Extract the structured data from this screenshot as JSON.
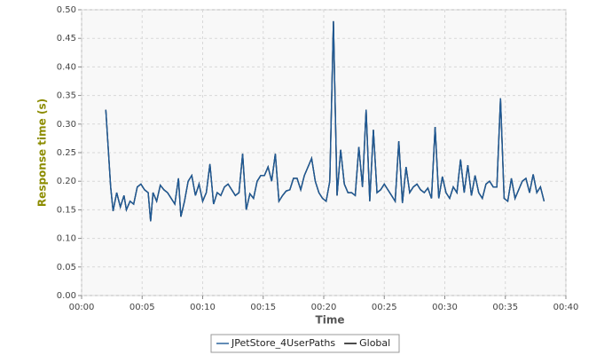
{
  "chart_data": {
    "type": "line",
    "xlabel": "Time",
    "ylabel": "Response time (s)",
    "x": [
      2.0,
      2.4,
      2.6,
      2.9,
      3.2,
      3.5,
      3.7,
      4.0,
      4.3,
      4.6,
      4.9,
      5.2,
      5.5,
      5.7,
      5.9,
      6.2,
      6.5,
      6.8,
      7.1,
      7.4,
      7.7,
      8.0,
      8.2,
      8.5,
      8.8,
      9.1,
      9.4,
      9.7,
      10.0,
      10.3,
      10.6,
      10.9,
      11.2,
      11.5,
      11.8,
      12.1,
      12.4,
      12.7,
      13.0,
      13.3,
      13.6,
      13.9,
      14.2,
      14.5,
      14.8,
      15.1,
      15.4,
      15.7,
      16.0,
      16.3,
      16.6,
      16.9,
      17.2,
      17.5,
      17.8,
      18.1,
      18.4,
      18.7,
      19.0,
      19.3,
      19.6,
      19.9,
      20.2,
      20.5,
      20.8,
      21.1,
      21.4,
      21.7,
      22.0,
      22.3,
      22.6,
      22.9,
      23.2,
      23.5,
      23.8,
      24.1,
      24.4,
      24.7,
      25.0,
      25.3,
      25.6,
      25.9,
      26.2,
      26.5,
      26.8,
      27.1,
      27.4,
      27.7,
      28.0,
      28.3,
      28.6,
      28.9,
      29.2,
      29.5,
      29.8,
      30.1,
      30.4,
      30.7,
      31.0,
      31.3,
      31.6,
      31.9,
      32.2,
      32.5,
      32.8,
      33.1,
      33.4,
      33.7,
      34.0,
      34.3,
      34.6,
      34.9,
      35.2,
      35.5,
      35.8,
      36.1,
      36.4,
      36.7,
      37.0,
      37.3,
      37.6,
      37.9,
      38.2
    ],
    "series": [
      {
        "name": "JPetStore_4UserPaths",
        "color": "#1f5a96",
        "values": [
          0.325,
          0.19,
          0.148,
          0.18,
          0.155,
          0.175,
          0.15,
          0.165,
          0.16,
          0.19,
          0.195,
          0.185,
          0.18,
          0.13,
          0.18,
          0.165,
          0.193,
          0.185,
          0.18,
          0.17,
          0.16,
          0.205,
          0.138,
          0.165,
          0.2,
          0.21,
          0.175,
          0.195,
          0.165,
          0.18,
          0.23,
          0.16,
          0.18,
          0.175,
          0.19,
          0.195,
          0.185,
          0.175,
          0.18,
          0.248,
          0.15,
          0.178,
          0.17,
          0.2,
          0.21,
          0.21,
          0.225,
          0.2,
          0.248,
          0.165,
          0.175,
          0.183,
          0.185,
          0.205,
          0.205,
          0.185,
          0.21,
          0.225,
          0.24,
          0.2,
          0.18,
          0.17,
          0.165,
          0.2,
          0.48,
          0.175,
          0.255,
          0.195,
          0.18,
          0.18,
          0.175,
          0.26,
          0.19,
          0.325,
          0.165,
          0.29,
          0.18,
          0.185,
          0.195,
          0.185,
          0.175,
          0.165,
          0.27,
          0.162,
          0.225,
          0.18,
          0.19,
          0.195,
          0.185,
          0.18,
          0.188,
          0.17,
          0.295,
          0.17,
          0.208,
          0.18,
          0.17,
          0.19,
          0.18,
          0.238,
          0.18,
          0.228,
          0.175,
          0.21,
          0.18,
          0.17,
          0.195,
          0.2,
          0.19,
          0.19,
          0.345,
          0.17,
          0.165,
          0.205,
          0.17,
          0.185,
          0.2,
          0.205,
          0.18,
          0.212,
          0.18,
          0.19,
          0.165
        ]
      },
      {
        "name": "Global",
        "color": "#000000",
        "values": [
          0.325,
          0.19,
          0.148,
          0.18,
          0.155,
          0.175,
          0.15,
          0.165,
          0.16,
          0.19,
          0.195,
          0.185,
          0.18,
          0.13,
          0.18,
          0.165,
          0.193,
          0.185,
          0.18,
          0.17,
          0.16,
          0.205,
          0.138,
          0.165,
          0.2,
          0.21,
          0.175,
          0.195,
          0.165,
          0.18,
          0.23,
          0.16,
          0.18,
          0.175,
          0.19,
          0.195,
          0.185,
          0.175,
          0.18,
          0.248,
          0.15,
          0.178,
          0.17,
          0.2,
          0.21,
          0.21,
          0.225,
          0.2,
          0.248,
          0.165,
          0.175,
          0.183,
          0.185,
          0.205,
          0.205,
          0.185,
          0.21,
          0.225,
          0.24,
          0.2,
          0.18,
          0.17,
          0.165,
          0.2,
          0.48,
          0.175,
          0.255,
          0.195,
          0.18,
          0.18,
          0.175,
          0.26,
          0.19,
          0.325,
          0.165,
          0.29,
          0.18,
          0.185,
          0.195,
          0.185,
          0.175,
          0.165,
          0.27,
          0.162,
          0.225,
          0.18,
          0.19,
          0.195,
          0.185,
          0.18,
          0.188,
          0.17,
          0.295,
          0.17,
          0.208,
          0.18,
          0.17,
          0.19,
          0.18,
          0.238,
          0.18,
          0.228,
          0.175,
          0.21,
          0.18,
          0.17,
          0.195,
          0.2,
          0.19,
          0.19,
          0.345,
          0.17,
          0.165,
          0.205,
          0.17,
          0.185,
          0.2,
          0.205,
          0.18,
          0.212,
          0.18,
          0.19,
          0.165
        ]
      }
    ],
    "xlim": [
      0,
      40
    ],
    "xticks": [
      {
        "value": 0,
        "label": "00:00"
      },
      {
        "value": 5,
        "label": "00:05"
      },
      {
        "value": 10,
        "label": "00:10"
      },
      {
        "value": 15,
        "label": "00:15"
      },
      {
        "value": 20,
        "label": "00:20"
      },
      {
        "value": 25,
        "label": "00:25"
      },
      {
        "value": 30,
        "label": "00:30"
      },
      {
        "value": 35,
        "label": "00:35"
      },
      {
        "value": 40,
        "label": "00:40"
      }
    ],
    "ylim": [
      0,
      0.5
    ],
    "yticks": [
      {
        "value": 0,
        "label": "0.00"
      },
      {
        "value": 0.05,
        "label": "0.05"
      },
      {
        "value": 0.1,
        "label": "0.10"
      },
      {
        "value": 0.15,
        "label": "0.15"
      },
      {
        "value": 0.2,
        "label": "0.20"
      },
      {
        "value": 0.25,
        "label": "0.25"
      },
      {
        "value": 0.3,
        "label": "0.30"
      },
      {
        "value": 0.35,
        "label": "0.35"
      },
      {
        "value": 0.4,
        "label": "0.40"
      },
      {
        "value": 0.45,
        "label": "0.45"
      },
      {
        "value": 0.5,
        "label": "0.50"
      }
    ],
    "grid": true,
    "legend": "bottom"
  }
}
